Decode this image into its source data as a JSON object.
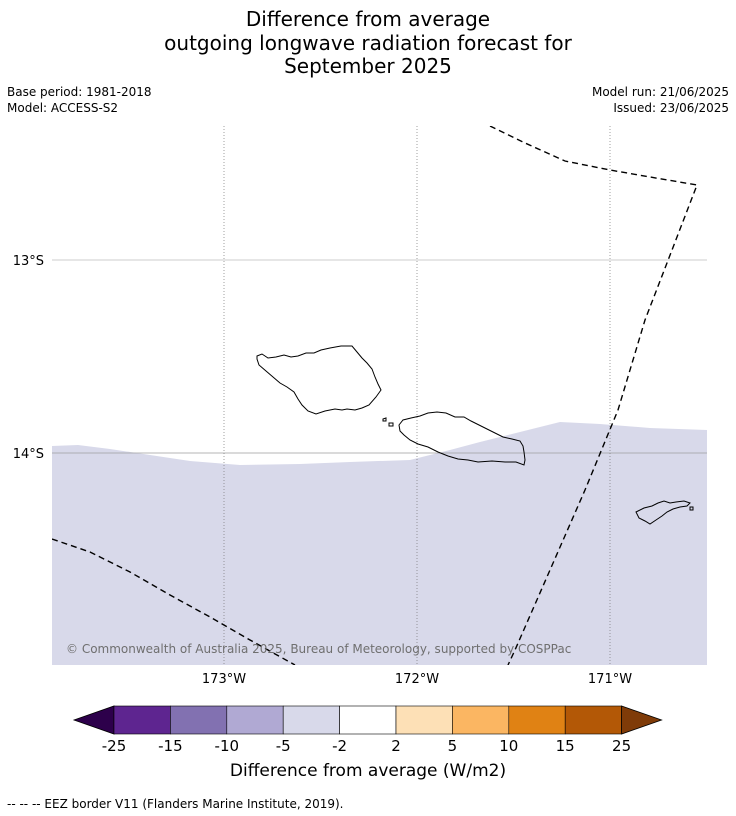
{
  "title": {
    "line1": "Difference from average",
    "line2": "outgoing longwave radiation forecast for",
    "line3": "September 2025"
  },
  "meta": {
    "base_period": "Base period: 1981-2018",
    "model": "Model: ACCESS-S2",
    "model_run": "Model run: 21/06/2025",
    "issued": "Issued: 23/06/2025"
  },
  "map": {
    "lat_labels": [
      "13°S",
      "14°S"
    ],
    "lon_labels": [
      "173°W",
      "172°W",
      "171°W"
    ],
    "copyright": "© Commonwealth of Australia 2025, Bureau of Meteorology, supported by COSPPac",
    "anomaly_fill_color": "#d8d9ea",
    "anomaly_category": "-5 to -2"
  },
  "colorbar": {
    "ticks": [
      "-25",
      "-15",
      "-10",
      "-5",
      "-2",
      "2",
      "5",
      "10",
      "15",
      "25"
    ],
    "colors": [
      "#5e2590",
      "#8271b1",
      "#b0a9d3",
      "#d8d9ea",
      "#ffffff",
      "#fde0b6",
      "#fbb662",
      "#e08214",
      "#b35806"
    ],
    "under_color": "#2d004b",
    "over_color": "#7f3b08",
    "label": "Difference from average (W/m2)"
  },
  "footnote": "--  --  -- EEZ border V11 (Flanders Marine Institute, 2019)."
}
